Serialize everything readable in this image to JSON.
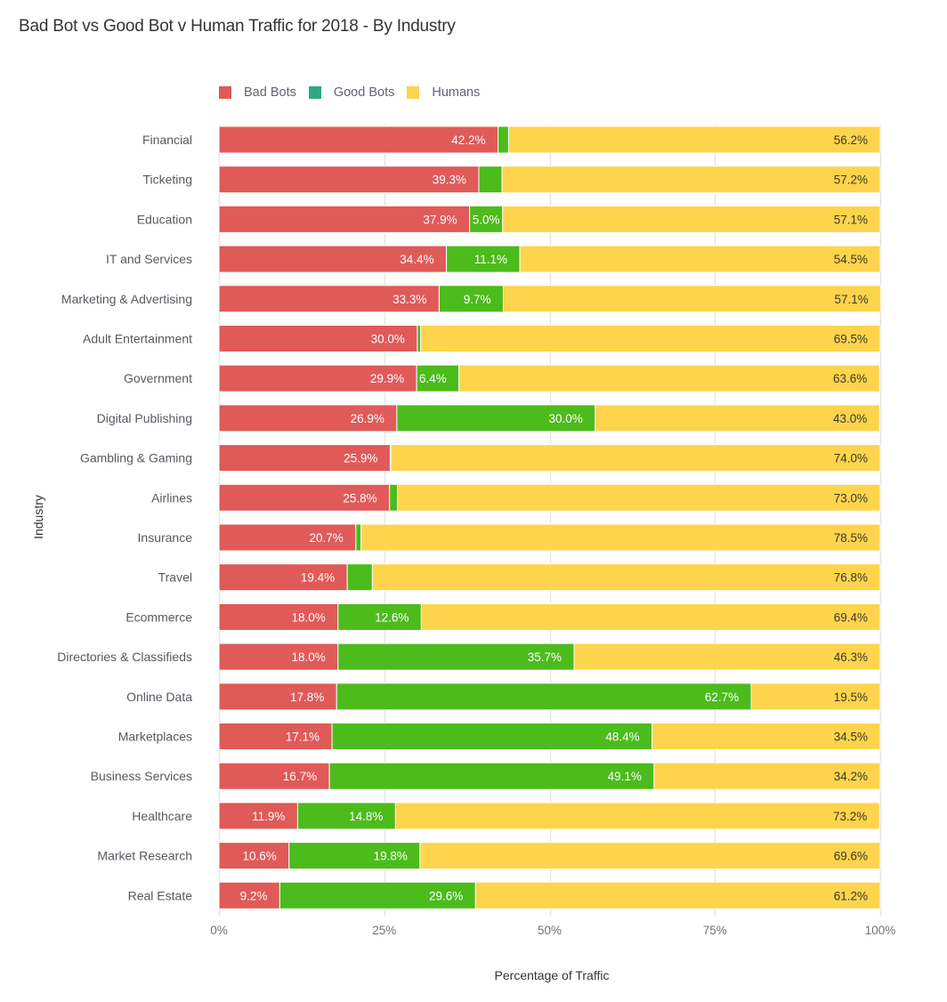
{
  "chart_data": {
    "type": "bar",
    "orientation": "horizontal",
    "stacked": true,
    "title": "Bad Bot vs Good Bot v Human Traffic for 2018 - By Industry",
    "xlabel": "Percentage of Traffic",
    "ylabel": "Industry",
    "xlim": [
      0,
      100
    ],
    "x_ticks": [
      "0%",
      "25%",
      "50%",
      "75%",
      "100%"
    ],
    "x_tick_values": [
      0,
      25,
      50,
      75,
      100
    ],
    "grid": true,
    "legend_position": "top-left",
    "categories": [
      "Financial",
      "Ticketing",
      "Education",
      "IT and Services",
      "Marketing & Advertising",
      "Adult Entertainment",
      "Government",
      "Digital Publishing",
      "Gambling & Gaming",
      "Airlines",
      "Insurance",
      "Travel",
      "Ecommerce",
      "Directories & Classifieds",
      "Online Data",
      "Marketplaces",
      "Business Services",
      "Healthcare",
      "Market Research",
      "Real Estate"
    ],
    "series": [
      {
        "name": "Bad Bots",
        "color": "#E05A58",
        "legend_color": "#E05A58",
        "values": [
          42.2,
          39.3,
          37.9,
          34.4,
          33.3,
          30.0,
          29.9,
          26.9,
          25.9,
          25.8,
          20.7,
          19.4,
          18.0,
          18.0,
          17.8,
          17.1,
          16.7,
          11.9,
          10.6,
          9.2
        ]
      },
      {
        "name": "Good Bots",
        "color": "#4CBB1C",
        "legend_color": "#2BAA84",
        "values": [
          1.6,
          3.5,
          5.0,
          11.1,
          9.7,
          0.5,
          6.4,
          30.0,
          0.1,
          1.2,
          0.8,
          3.8,
          12.6,
          35.7,
          62.7,
          48.4,
          49.1,
          14.8,
          19.8,
          29.6
        ]
      },
      {
        "name": "Humans",
        "color": "#FDD44C",
        "legend_color": "#FDD44C",
        "values": [
          56.2,
          57.2,
          57.1,
          54.5,
          57.1,
          69.5,
          63.6,
          43.0,
          74.0,
          73.0,
          78.5,
          76.8,
          69.4,
          46.3,
          19.5,
          34.5,
          34.2,
          73.2,
          69.6,
          61.2
        ]
      }
    ]
  }
}
